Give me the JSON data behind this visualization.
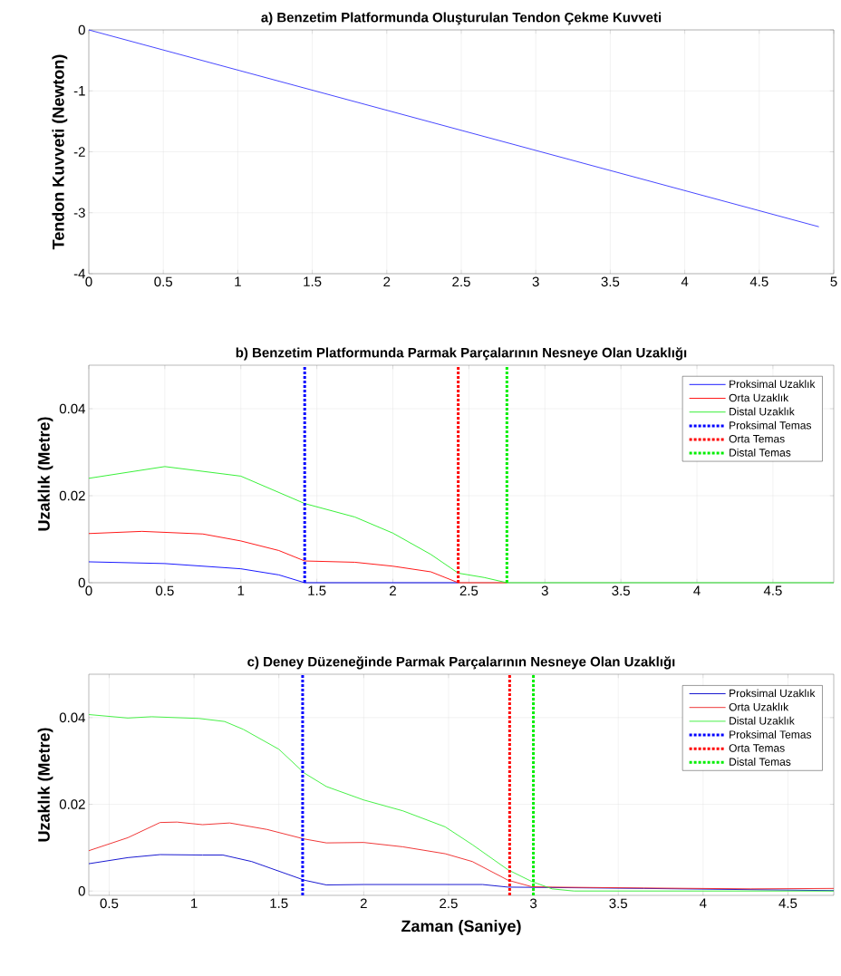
{
  "chart_data": [
    {
      "type": "line",
      "title": "a) Benzetim Platformunda Oluşturulan Tendon Çekme Kuvveti",
      "ylabel": "Tendon Kuvveti (Newton)",
      "xlim": [
        0,
        5
      ],
      "ylim": [
        -4,
        0
      ],
      "xticks": [
        0,
        0.5,
        1,
        1.5,
        2,
        2.5,
        3,
        3.5,
        4,
        4.5,
        5
      ],
      "yticks": [
        -4,
        -3,
        -2,
        -1,
        0
      ],
      "grid": true,
      "series": [
        {
          "color": "#3333ff",
          "x": [
            0,
            4.9
          ],
          "values": [
            0,
            -3.23
          ]
        }
      ]
    },
    {
      "type": "line",
      "title": "b) Benzetim Platformunda Parmak Parçalarının Nesneye Olan Uzaklığı",
      "ylabel": "Uzaklık (Metre)",
      "xlim": [
        0,
        4.9
      ],
      "ylim": [
        0,
        0.05
      ],
      "xticks": [
        0,
        0.5,
        1,
        1.5,
        2,
        2.5,
        3,
        3.5,
        4,
        4.5
      ],
      "yticks": [
        0,
        0.02,
        0.04
      ],
      "grid": true,
      "legend": "top right",
      "series": [
        {
          "name": "Proksimal Uzaklık",
          "color": "#0000ff",
          "x": [
            0,
            0.5,
            1.0,
            1.25,
            1.42,
            2.0,
            2.43
          ],
          "values": [
            0.0048,
            0.0044,
            0.0032,
            0.0018,
            0,
            0,
            0
          ]
        },
        {
          "name": "Orta Uzaklık",
          "color": "#ff0000",
          "x": [
            0,
            0.35,
            0.75,
            1.0,
            1.25,
            1.42,
            1.75,
            2.0,
            2.25,
            2.43,
            2.75
          ],
          "values": [
            0.0113,
            0.0118,
            0.0112,
            0.0096,
            0.0074,
            0.005,
            0.0047,
            0.0038,
            0.0025,
            0,
            0
          ]
        },
        {
          "name": "Distal Uzaklık",
          "color": "#22ee22",
          "x": [
            0,
            0.5,
            1.0,
            1.42,
            1.75,
            2.0,
            2.25,
            2.43,
            2.6,
            2.75,
            3.5,
            4.9
          ],
          "values": [
            0.024,
            0.0267,
            0.0245,
            0.0182,
            0.0151,
            0.0114,
            0.0065,
            0.0022,
            0.0012,
            0,
            0,
            0
          ]
        },
        {
          "name": "Proksimal Temas",
          "color": "#0000ff",
          "line_style": "dotted",
          "x": [
            1.42,
            1.42
          ],
          "values": [
            0,
            0.05
          ]
        },
        {
          "name": "Orta Temas",
          "color": "#ff0000",
          "line_style": "dotted",
          "x": [
            2.43,
            2.43
          ],
          "values": [
            0,
            0.05
          ]
        },
        {
          "name": "Distal Temas",
          "color": "#00ee00",
          "line_style": "dotted",
          "x": [
            2.75,
            2.75
          ],
          "values": [
            0,
            0.05
          ]
        }
      ]
    },
    {
      "type": "line",
      "title": "c) Deney Düzeneğinde Parmak Parçalarının Nesneye Olan Uzaklığı",
      "xlabel": "Zaman (Saniye)",
      "ylabel": "Uzaklık (Metre)",
      "xlim": [
        0.38,
        4.77
      ],
      "ylim": [
        -0.001,
        0.05
      ],
      "xticks": [
        0.5,
        1,
        1.5,
        2,
        2.5,
        3,
        3.5,
        4,
        4.5
      ],
      "yticks": [
        0,
        0.02,
        0.04
      ],
      "grid": true,
      "legend": "top right",
      "series": [
        {
          "name": "Proksimal Uzaklık",
          "color": "#0000cc",
          "x": [
            0.38,
            0.61,
            0.8,
            1.05,
            1.17,
            1.34,
            1.65,
            1.78,
            2.0,
            2.7,
            2.85,
            3.11,
            3.65,
            4.77
          ],
          "values": [
            0.0063,
            0.0077,
            0.0084,
            0.0083,
            0.0083,
            0.0068,
            0.0025,
            0.0014,
            0.0015,
            0.0015,
            0.0009,
            null,
            0.0006,
            0.0001
          ]
        },
        {
          "name": "Orta Uzaklık",
          "color": "#ee2222",
          "x": [
            0.38,
            0.61,
            0.8,
            0.9,
            1.05,
            1.21,
            1.43,
            1.65,
            1.78,
            2.0,
            2.23,
            2.48,
            2.64,
            2.85,
            2.99,
            3.11,
            3.65,
            4.28,
            4.77
          ],
          "values": [
            0.0093,
            0.0123,
            0.0158,
            0.0159,
            0.0153,
            0.0157,
            0.0142,
            0.012,
            0.0111,
            0.0112,
            0.0102,
            0.0086,
            0.0068,
            0.0025,
            0.001,
            0.0009,
            0.0007,
            0.0005,
            0.0006
          ]
        },
        {
          "name": "Distal Uzaklık",
          "color": "#33ee33",
          "x": [
            0.38,
            0.61,
            0.75,
            1.03,
            1.18,
            1.29,
            1.5,
            1.65,
            1.78,
            2.0,
            2.23,
            2.48,
            2.64,
            2.85,
            2.99,
            3.11,
            3.24,
            4.77
          ],
          "values": [
            0.0407,
            0.0399,
            0.0402,
            0.0398,
            0.0391,
            0.0373,
            0.0327,
            0.0272,
            0.0241,
            0.021,
            0.0185,
            0.0148,
            0.0107,
            0.0049,
            0.0022,
            0.0005,
            0,
            0
          ]
        },
        {
          "name": "Proksimal Temas",
          "color": "#0000ff",
          "line_style": "dotted",
          "x": [
            1.64,
            1.64
          ],
          "values": [
            -0.001,
            0.05
          ]
        },
        {
          "name": "Orta Temas",
          "color": "#ff0000",
          "line_style": "dotted",
          "x": [
            2.86,
            2.86
          ],
          "values": [
            -0.001,
            0.05
          ]
        },
        {
          "name": "Distal Temas",
          "color": "#00ee00",
          "line_style": "dotted",
          "x": [
            3.0,
            3.0
          ],
          "values": [
            -0.001,
            0.05
          ]
        }
      ]
    }
  ]
}
